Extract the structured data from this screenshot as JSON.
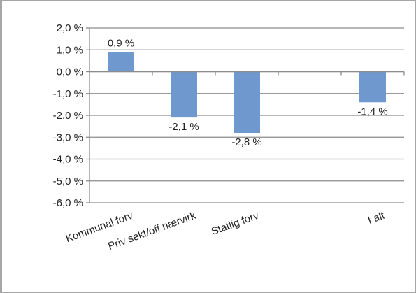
{
  "chart_data": {
    "type": "bar",
    "title": "",
    "xlabel": "",
    "ylabel": "",
    "categories": [
      "Kommunal forv",
      "Priv sekt/off  nærvirk",
      "Statlig forv",
      "",
      "I alt"
    ],
    "values": [
      0.9,
      -2.1,
      -2.8,
      null,
      -1.4
    ],
    "data_labels": [
      "0,9 %",
      "-2,1 %",
      "-2,8 %",
      "",
      "-1,4 %"
    ],
    "ylim": [
      -6,
      2
    ],
    "y_ticks": [
      2,
      1,
      0,
      -1,
      -2,
      -3,
      -4,
      -5,
      -6
    ],
    "y_tick_labels": [
      "2,0 %",
      "1,0 %",
      "0,0 %",
      "-1,0 %",
      "-2,0 %",
      "-3,0 %",
      "-4,0 %",
      "-5,0 %",
      "-6,0 %"
    ],
    "grid": true,
    "legend": "none",
    "colors": {
      "bar": "#6f98cf",
      "grid": "#8c8c8c",
      "axis": "#8c8c8c",
      "frame": "#a6a6a6"
    }
  }
}
